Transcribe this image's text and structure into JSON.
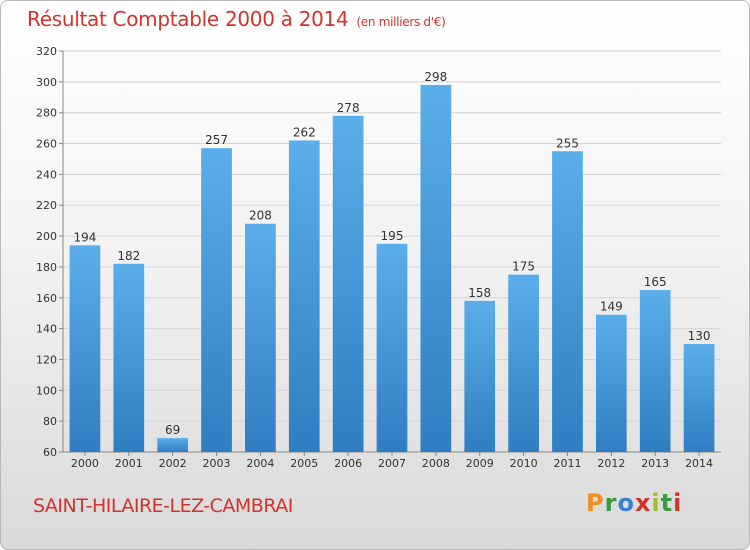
{
  "header": {
    "title": "Résultat Comptable 2000 à 2014",
    "unit": "(en milliers d'€)"
  },
  "footer": {
    "commune": "SAINT-HILAIRE-LEZ-CAMBRAI",
    "logo_letters": [
      "P",
      "r",
      "o",
      "x",
      "i",
      "t",
      "i"
    ],
    "logo_colors": [
      "#f28c1c",
      "#3a9a3c",
      "#3a7fd0",
      "#d0342c",
      "#9fbf2a",
      "#3a9a3c",
      "#d0342c"
    ]
  },
  "colors": {
    "bar": "#4a9fdf",
    "bar_dark": "#2e7fc0",
    "accent": "#d0342c"
  },
  "chart_data": {
    "type": "bar",
    "title": "Résultat Comptable 2000 à 2014",
    "subtitle": "(en milliers d'€)",
    "categories": [
      "2000",
      "2001",
      "2002",
      "2003",
      "2004",
      "2005",
      "2006",
      "2007",
      "2008",
      "2009",
      "2010",
      "2011",
      "2012",
      "2013",
      "2014"
    ],
    "values": [
      194,
      182,
      69,
      257,
      208,
      262,
      278,
      195,
      298,
      158,
      175,
      255,
      149,
      165,
      130
    ],
    "ylim": [
      60,
      320
    ],
    "yticks": [
      60,
      80,
      100,
      120,
      140,
      160,
      180,
      200,
      220,
      240,
      260,
      280,
      300,
      320
    ],
    "grid": true,
    "data_labels": true
  }
}
